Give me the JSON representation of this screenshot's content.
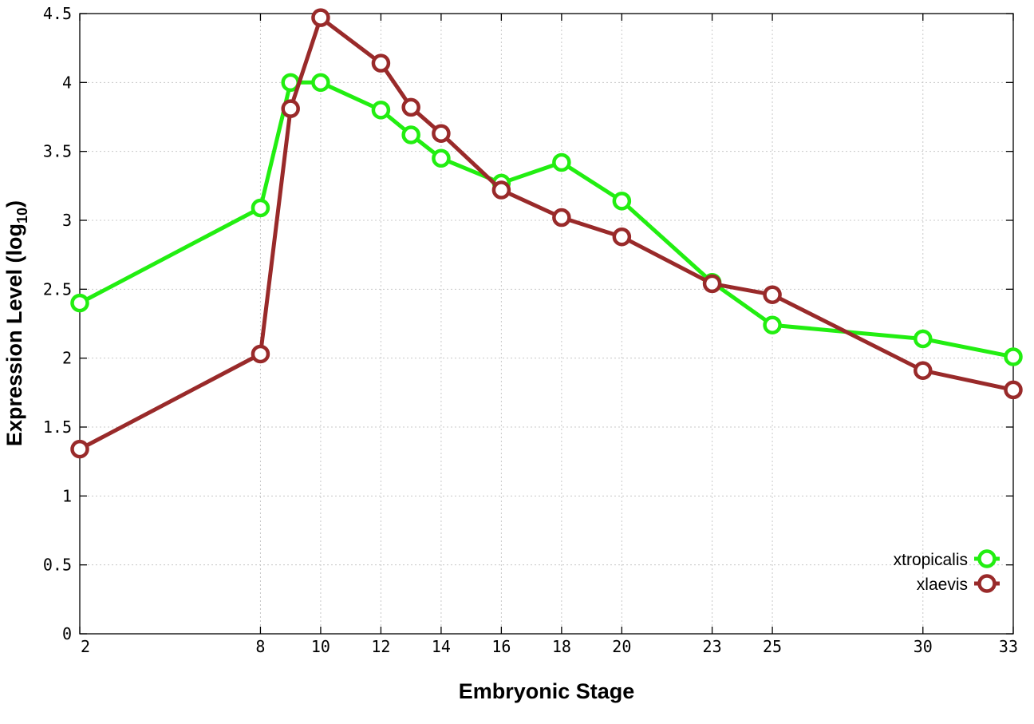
{
  "chart_data": {
    "type": "line",
    "title": "",
    "xlabel": "Embryonic Stage",
    "ylabel_main": "Expression Level (log",
    "ylabel_sub": "10",
    "ylabel_end": ")",
    "x": [
      2,
      8,
      9,
      10,
      12,
      13,
      14,
      16,
      18,
      20,
      23,
      25,
      30,
      33
    ],
    "x_ticks": [
      2,
      8,
      10,
      12,
      14,
      16,
      18,
      20,
      23,
      25,
      30,
      33
    ],
    "x_tick_labels": [
      "2",
      "8",
      "10",
      "12",
      "14",
      "16",
      "18",
      "20",
      "23",
      "25",
      "30",
      "33"
    ],
    "y_ticks": [
      0,
      0.5,
      1,
      1.5,
      2,
      2.5,
      3,
      3.5,
      4,
      4.5
    ],
    "y_tick_labels": [
      "0",
      "0.5",
      "1",
      "1.5",
      "2",
      "2.5",
      "3",
      "3.5",
      "4",
      "4.5"
    ],
    "xlim": [
      2,
      33
    ],
    "ylim": [
      0,
      4.5
    ],
    "grid": true,
    "legend_position": "bottom-right",
    "series": [
      {
        "name": "xtropicalis",
        "color": "#22ee11",
        "values": [
          2.4,
          3.09,
          4.0,
          4.0,
          3.8,
          3.62,
          3.45,
          3.27,
          3.42,
          3.14,
          2.55,
          2.24,
          2.14,
          2.01
        ]
      },
      {
        "name": "xlaevis",
        "color": "#992a2a",
        "values": [
          1.34,
          2.03,
          3.81,
          4.47,
          4.14,
          3.82,
          3.63,
          3.22,
          3.02,
          2.88,
          2.54,
          2.46,
          1.91,
          1.77
        ]
      }
    ]
  }
}
